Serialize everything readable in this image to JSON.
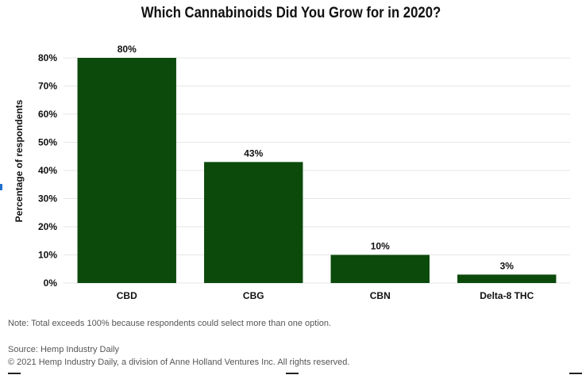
{
  "chart_data": {
    "type": "bar",
    "title": "Which Cannabinoids Did You Grow for in 2020?",
    "ylabel": "Percentage of respondents",
    "xlabel": "",
    "categories": [
      "CBD",
      "CBG",
      "CBN",
      "Delta-8 THC"
    ],
    "values": [
      80,
      43,
      10,
      3
    ],
    "data_labels": [
      "80%",
      "43%",
      "10%",
      "3%"
    ],
    "yticks": [
      "0%",
      "10%",
      "20%",
      "30%",
      "40%",
      "50%",
      "60%",
      "70%",
      "80%"
    ],
    "ylim": [
      0,
      80
    ],
    "grid": true,
    "bar_color": "#0b4a0b"
  },
  "notes": {
    "note": "Note: Total exceeds 100% because respondents could select more than one option.",
    "source": "Source: Hemp Industry Daily",
    "copyright": "© 2021 Hemp Industry Daily, a division of Anne Holland Ventures Inc. All rights reserved."
  }
}
